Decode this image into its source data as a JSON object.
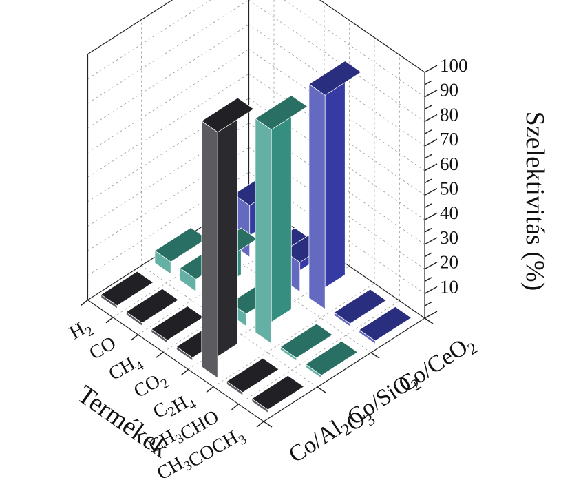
{
  "chart_data": {
    "type": "bar",
    "subtype": "3d-bar",
    "title": "",
    "xlabel": "Termékek",
    "ylabel": "",
    "zlabel": "Szelektivitás (%)",
    "zlim": [
      0,
      100
    ],
    "zticks": [
      "10",
      "20",
      "30",
      "40",
      "50",
      "60",
      "70",
      "80",
      "90",
      "100"
    ],
    "categories": [
      {
        "base": "CH",
        "sub": "3",
        "mid": "COCH",
        "sub2": "3",
        "color": "#111111"
      },
      {
        "base": "CH",
        "sub": "3",
        "mid": "CHO",
        "sub2": "",
        "color": "#111111"
      },
      {
        "base": "C",
        "sub": "2",
        "mid": "H",
        "sub2": "4",
        "color": "#111111"
      },
      {
        "base": "CO",
        "sub": "2",
        "mid": "",
        "sub2": "",
        "color": "#111111"
      },
      {
        "base": "CH",
        "sub": "4",
        "mid": "",
        "sub2": "",
        "color": "#111111"
      },
      {
        "base": "CO",
        "sub": "",
        "mid": "",
        "sub2": "",
        "color": "#111111"
      },
      {
        "base": "H",
        "sub": "2",
        "mid": "",
        "sub2": "",
        "color": "#d42020"
      }
    ],
    "series": [
      {
        "label_parts": {
          "base": "Co/Al",
          "sub": "2",
          "mid": "O",
          "sub2": "3"
        },
        "values": [
          0,
          0,
          100,
          0,
          0,
          0,
          0
        ],
        "color": "#2e2e33"
      },
      {
        "label_parts": {
          "base": "Co/SiO",
          "sub": "2",
          "mid": "",
          "sub2": ""
        },
        "values": [
          0,
          0,
          87,
          5,
          19,
          5,
          5
        ],
        "color": "#3a9a8a"
      },
      {
        "label_parts": {
          "base": "Co/CeO",
          "sub": "2",
          "mid": "",
          "sub2": ""
        },
        "values": [
          0,
          0,
          87,
          12,
          5,
          21,
          5
        ],
        "color": "#3a40b0"
      }
    ],
    "grid": true,
    "legend": "none"
  }
}
